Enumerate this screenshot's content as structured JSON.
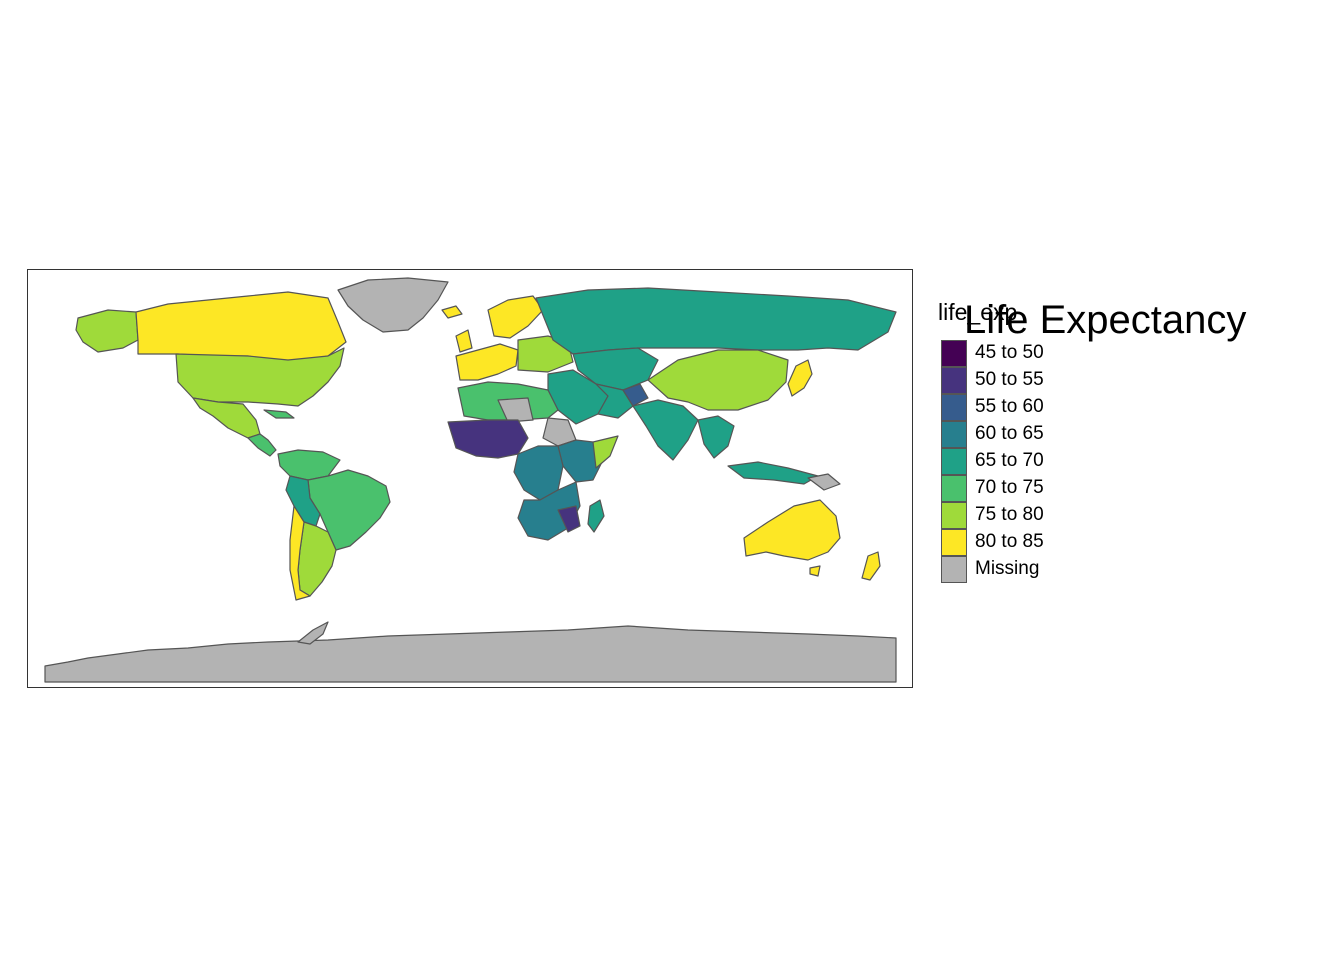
{
  "map": {
    "title": "Life Expectancy",
    "variable": "life_exp",
    "classification": "equal-interval",
    "background": "#ffffff",
    "border_color": "#555555",
    "legend": {
      "title": "life_exp",
      "position": "right",
      "items": [
        {
          "label": "45 to 50",
          "color": "#440154"
        },
        {
          "label": "50 to 55",
          "color": "#46337E"
        },
        {
          "label": "55 to 60",
          "color": "#365C8D"
        },
        {
          "label": "60 to 65",
          "color": "#277F8E"
        },
        {
          "label": "65 to 70",
          "color": "#1FA187"
        },
        {
          "label": "70 to 75",
          "color": "#4AC16D"
        },
        {
          "label": "75 to 80",
          "color": "#9FDA3A"
        },
        {
          "label": "80 to 85",
          "color": "#FDE725"
        },
        {
          "label": "Missing",
          "color": "#B3B3B3"
        }
      ]
    }
  }
}
